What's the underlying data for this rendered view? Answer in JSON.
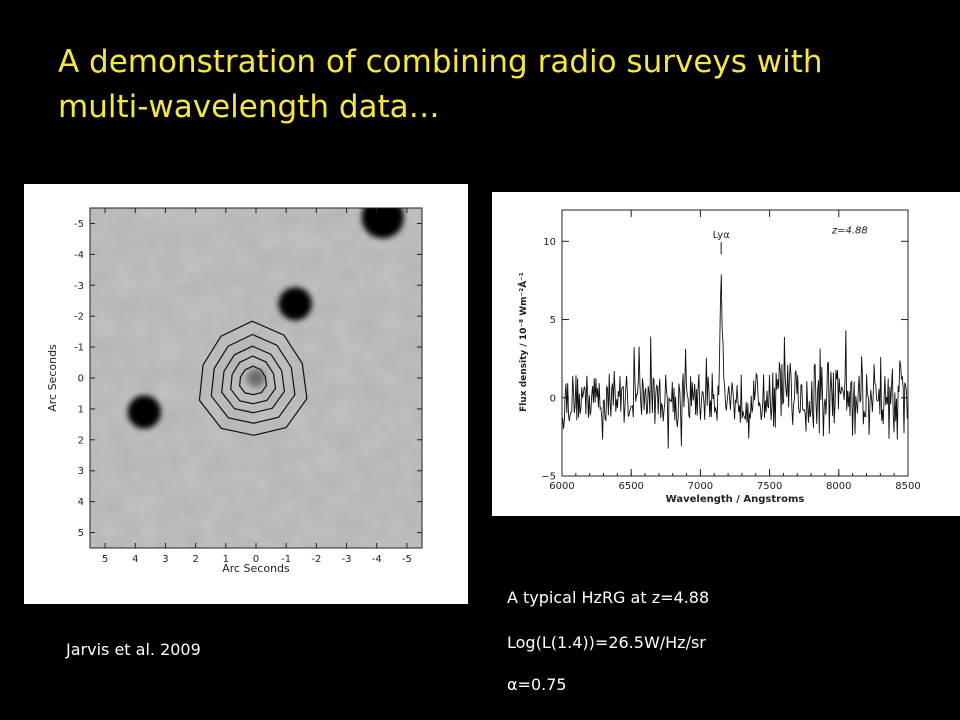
{
  "slide": {
    "title": "A demonstration of combining radio surveys with multi-wavelength data…",
    "citation": "Jarvis et al. 2009",
    "description_lines": [
      "A typical HzRG at z=4.88",
      "Log(L(1.4))=26.5W/Hz/sr"
    ],
    "alpha_symbol": "α",
    "alpha_value": "=0.75",
    "colors": {
      "background": "#000000",
      "title": "#f5e642",
      "text": "#ffffff"
    }
  },
  "chart_data": [
    {
      "type": "heatmap",
      "title": "",
      "xlabel": "Arc Seconds",
      "ylabel": "Arc Seconds",
      "xlim": [
        5.5,
        -5.5
      ],
      "ylim": [
        -5.5,
        5.5
      ],
      "y_inverted": true,
      "x_ticks": [
        "5",
        "4",
        "3",
        "2",
        "1",
        "0",
        "-1",
        "-2",
        "-3",
        "-4",
        "-5"
      ],
      "y_ticks": [
        "-5",
        "-4",
        "-3",
        "-2",
        "-1",
        "0",
        "1",
        "2",
        "3",
        "4",
        "5"
      ],
      "grayscale_sources": [
        {
          "x": 3.7,
          "y": 1.1,
          "r": 0.55
        },
        {
          "x": -1.3,
          "y": -2.4,
          "r": 0.55
        },
        {
          "x": -4.2,
          "y": -5.2,
          "r": 0.7
        },
        {
          "x": 0.0,
          "y": 0.0,
          "r": 0.3
        }
      ],
      "contours": {
        "center": [
          0.1,
          0.1
        ],
        "radii": [
          0.45,
          0.75,
          1.05,
          1.4,
          1.8
        ],
        "sides": 10
      }
    },
    {
      "type": "line",
      "title": "",
      "xlabel": "Wavelength / Angstroms",
      "ylabel": "Flux density / 10⁻⁸ Wm⁻²Å⁻¹",
      "xlim": [
        6000,
        8500
      ],
      "ylim": [
        -5,
        12
      ],
      "x_ticks": [
        "6000",
        "6500",
        "7000",
        "7500",
        "8000",
        "8500"
      ],
      "y_ticks": [
        "−5",
        "0",
        "5",
        "10"
      ],
      "annotations": [
        {
          "text": "Lyα",
          "x": 7150,
          "y": 10.2
        },
        {
          "text": "z=4.88",
          "x": 7950,
          "y": 10.5
        }
      ],
      "line_peak": {
        "x": 7150,
        "y": 8.5
      }
    }
  ]
}
